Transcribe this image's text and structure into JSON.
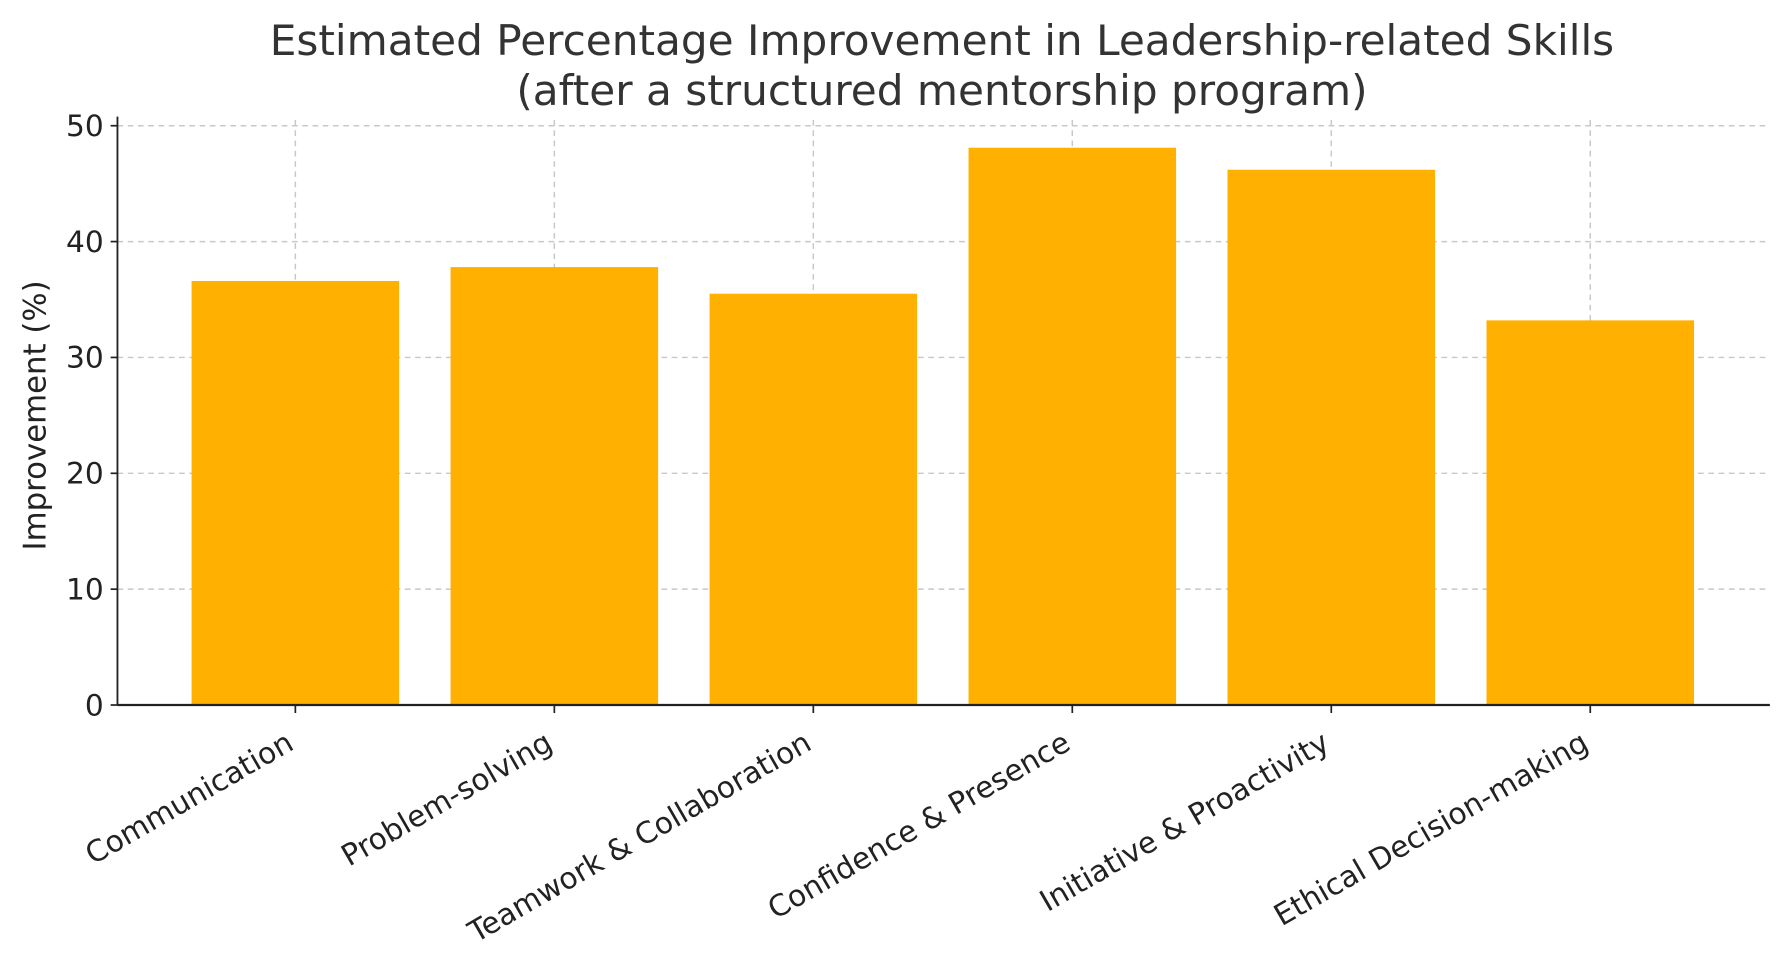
{
  "chart_data": {
    "type": "bar",
    "title": "Estimated Percentage Improvement in Leadership-related Skills",
    "subtitle": "(after a structured mentorship program)",
    "xlabel": "",
    "ylabel": "Improvement (%)",
    "categories": [
      "Communication",
      "Problem-solving",
      "Teamwork & Collaboration",
      "Confidence & Presence",
      "Initiative & Proactivity",
      "Ethical Decision-making"
    ],
    "values": [
      36.6,
      37.8,
      35.5,
      48.1,
      46.2,
      33.2
    ],
    "ylim": [
      0,
      50
    ],
    "yticks": [
      0,
      10,
      20,
      30,
      40,
      50
    ],
    "grid": true,
    "bar_color": "#FFB000"
  }
}
